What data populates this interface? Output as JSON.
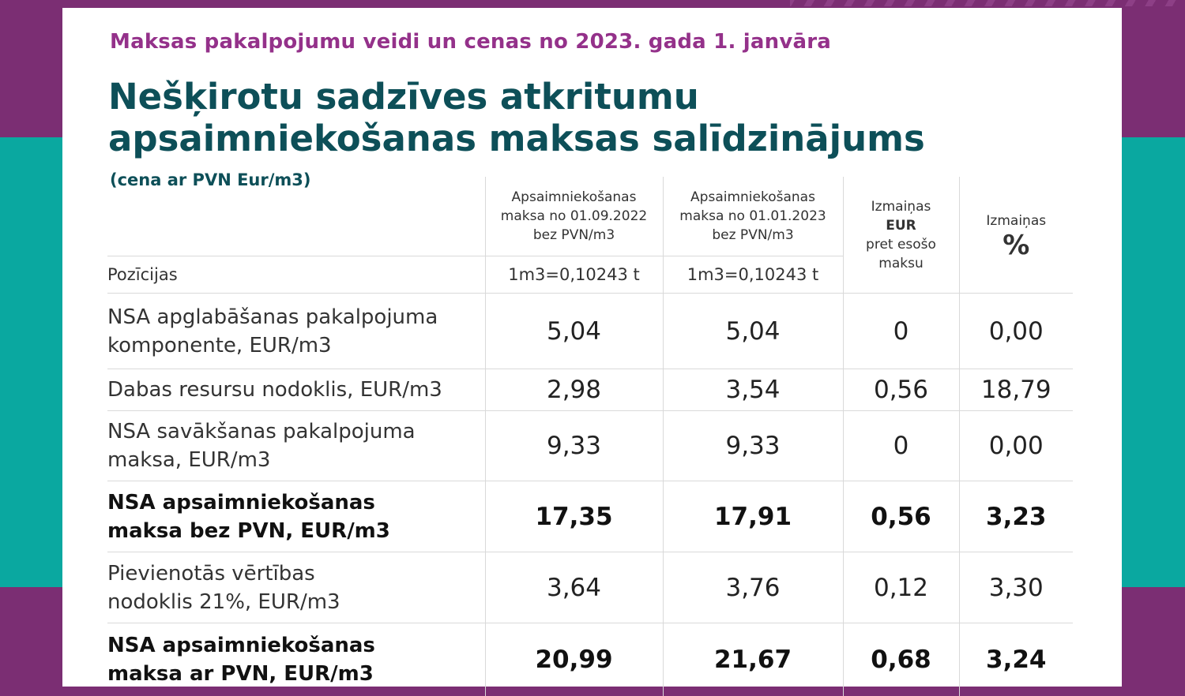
{
  "subtitle": "Maksas pakalpojumu veidi un cenas no 2023. gada 1. janvāra",
  "title_line1": "Nešķirotu sadzīves atkritumu",
  "title_line2": "apsaimniekošanas maksas salīdzinājums",
  "unit_note": "(cena ar PVN Eur/m3)",
  "headers": {
    "col2": [
      "Apsaimniekošanas",
      "maksa no 01.09.2022",
      "bez PVN/m3"
    ],
    "col3": [
      "Apsaimniekošanas",
      "maksa no 01.01.2023",
      "bez PVN/m3"
    ],
    "col4": [
      "Izmaiņas",
      "EUR",
      "pret esošo",
      "maksu"
    ],
    "col5": [
      "Izmaiņas",
      "%"
    ],
    "positions": "Pozīcijas",
    "ratio2": "1m3=0,10243 t",
    "ratio3": "1m3=0,10243 t"
  },
  "rows": [
    {
      "label": [
        "NSA apglabāšanas pakalpojuma",
        "komponente, EUR/m3"
      ],
      "v2022": "5,04",
      "v2023": "5,04",
      "diff_eur": "0",
      "diff_pct": "0,00"
    },
    {
      "label": [
        "Dabas resursu nodoklis, EUR/m3"
      ],
      "v2022": "2,98",
      "v2023": "3,54",
      "diff_eur": "0,56",
      "diff_pct": "18,79"
    },
    {
      "label": [
        "NSA savākšanas pakalpojuma",
        "maksa, EUR/m3"
      ],
      "v2022": "9,33",
      "v2023": "9,33",
      "diff_eur": "0",
      "diff_pct": "0,00"
    },
    {
      "label": [
        "NSA apsaimniekošanas",
        "maksa bez PVN, EUR/m3"
      ],
      "v2022": "17,35",
      "v2023": "17,91",
      "diff_eur": "0,56",
      "diff_pct": "3,23"
    },
    {
      "label": [
        "Pievienotās vērtības",
        "nodoklis 21%, EUR/m3"
      ],
      "v2022": "3,64",
      "v2023": "3,76",
      "diff_eur": "0,12",
      "diff_pct": "3,30"
    },
    {
      "label": [
        "NSA apsaimniekošanas",
        "maksa ar PVN, EUR/m3"
      ],
      "v2022": "20,99",
      "v2023": "21,67",
      "diff_eur": "0,68",
      "diff_pct": "3,24"
    }
  ],
  "colors": {
    "purple": "#7b2e73",
    "teal": "#0aa8a0",
    "title": "#0d4f58",
    "subtitle": "#94318a"
  }
}
